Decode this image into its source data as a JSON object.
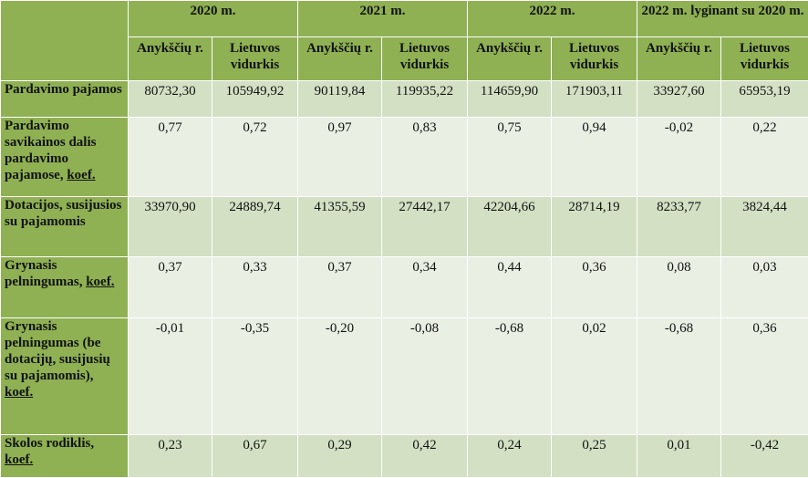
{
  "table": {
    "years": [
      "2020 m.",
      "2021 m.",
      "2022 m.",
      "2022 m. lyginant su 2020 m."
    ],
    "subheaders": [
      "Anykščių r.",
      "Lietuvos vidurkis",
      "Anykščių r.",
      "Lietuvos vidurkis",
      "Anykščių r.",
      "Lietuvos vidurkis",
      "Anykščių r.",
      "Lietuvos vidurkis"
    ],
    "rows": [
      {
        "label": "Pardavimo pajamos",
        "label_suffix": "",
        "values": [
          "80732,30",
          "105949,92",
          "90119,84",
          "119935,22",
          "114659,90",
          "171903,11",
          "33927,60",
          "65953,19"
        ]
      },
      {
        "label": "Pardavimo savikainos dalis pardavimo pajamose, ",
        "label_suffix": "koef.",
        "values": [
          "0,77",
          "0,72",
          "0,97",
          "0,83",
          "0,75",
          "0,94",
          "-0,02",
          "0,22"
        ]
      },
      {
        "label": "Dotacijos, susijusios su pajamomis",
        "label_suffix": "",
        "values": [
          "33970,90",
          "24889,74",
          "41355,59",
          "27442,17",
          "42204,66",
          "28714,19",
          "8233,77",
          "3824,44"
        ]
      },
      {
        "label": "Grynasis pelningumas, ",
        "label_suffix": "koef.",
        "values": [
          "0,37",
          "0,33",
          "0,37",
          "0,34",
          "0,44",
          "0,36",
          "0,08",
          "0,03"
        ]
      },
      {
        "label": "Grynasis pelningumas (be dotacijų, susijusių su pajamomis), ",
        "label_suffix": "koef.",
        "values": [
          "-0,01",
          "-0,35",
          "-0,20",
          "-0,08",
          "-0,68",
          "0,02",
          "-0,68",
          "0,36"
        ]
      },
      {
        "label": "Skolos rodiklis, ",
        "label_suffix": "koef.",
        "values": [
          "0,23",
          "0,67",
          "0,29",
          "0,42",
          "0,24",
          "0,25",
          "0,01",
          "-0,42"
        ]
      }
    ]
  }
}
